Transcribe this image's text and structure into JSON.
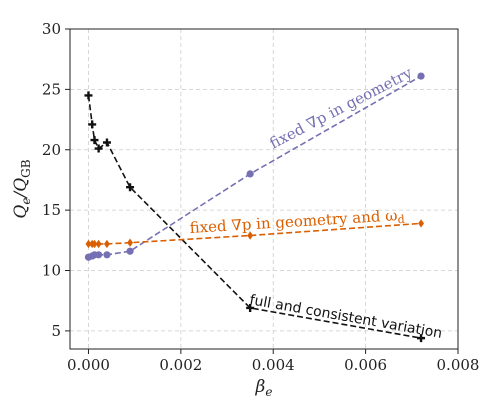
{
  "chart_data": {
    "type": "line",
    "xlabel": "β_e",
    "ylabel": "Q_e / Q_GB",
    "xlim": [
      -0.0004,
      0.008
    ],
    "ylim": [
      3.5,
      30
    ],
    "xticks": [
      0.0,
      0.002,
      0.004,
      0.006,
      0.008
    ],
    "xtick_labels": [
      "0.000",
      "0.002",
      "0.004",
      "0.006",
      "0.008"
    ],
    "yticks": [
      5,
      10,
      15,
      20,
      25,
      30
    ],
    "ytick_labels": [
      "5",
      "10",
      "15",
      "20",
      "25",
      "30"
    ],
    "grid": true,
    "legend": "none",
    "series": [
      {
        "name": "full and consistent variation",
        "color": "#111111",
        "marker": "plus",
        "x": [
          0.0,
          8e-05,
          0.00013,
          0.00022,
          0.0004,
          0.0009,
          0.0035,
          0.0072
        ],
        "y": [
          24.5,
          22.1,
          20.8,
          20.1,
          20.6,
          16.9,
          6.9,
          4.4
        ]
      },
      {
        "name": "fixed ∇p in geometry",
        "color": "#7570b3",
        "marker": "circle",
        "x": [
          0.0,
          8e-05,
          0.00013,
          0.00022,
          0.0004,
          0.0009,
          0.0035,
          0.0072
        ],
        "y": [
          11.1,
          11.2,
          11.3,
          11.3,
          11.3,
          11.6,
          18.0,
          26.1
        ]
      },
      {
        "name": "fixed ∇p in geometry and ω_d",
        "color": "#d95f02",
        "marker": "diamond",
        "x": [
          0.0,
          8e-05,
          0.00013,
          0.00022,
          0.0004,
          0.0009,
          0.0035,
          0.0072
        ],
        "y": [
          12.2,
          12.2,
          12.2,
          12.2,
          12.2,
          12.3,
          12.9,
          13.9
        ]
      }
    ]
  }
}
